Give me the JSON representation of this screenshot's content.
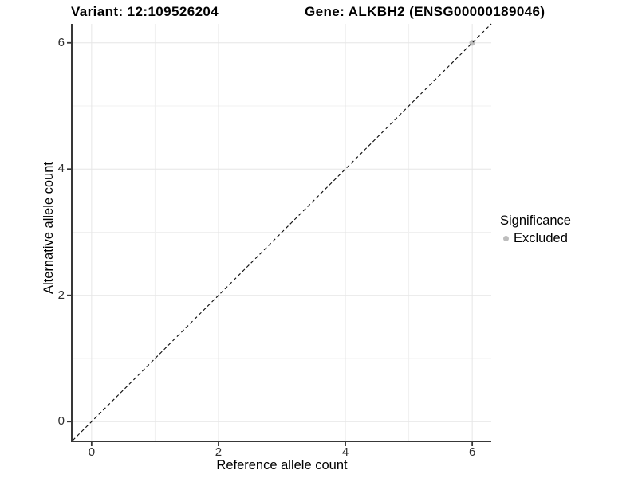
{
  "titles": {
    "variant": "Variant: 12:109526204",
    "gene": "Gene: ALKBH2 (ENSG00000189046)"
  },
  "chart_data": {
    "type": "scatter",
    "title": "Variant: 12:109526204   Gene: ALKBH2 (ENSG00000189046)",
    "xlabel": "Reference allele count",
    "ylabel": "Alternative allele count",
    "xlim": [
      -0.3,
      6.3
    ],
    "ylim": [
      -0.3,
      6.3
    ],
    "xticks": [
      0,
      2,
      4,
      6
    ],
    "yticks": [
      0,
      2,
      4,
      6
    ],
    "minor_xticks": [
      1,
      3,
      5
    ],
    "minor_yticks": [
      1,
      3,
      5
    ],
    "grid": "major and minor gridlines on white panel",
    "identity_line": {
      "slope": 1,
      "intercept": 0,
      "style": "dashed",
      "color": "#111111"
    },
    "series": [
      {
        "name": "Excluded",
        "color": "#bdbdbd",
        "points": [
          {
            "x": 6,
            "y": 6
          }
        ]
      }
    ],
    "legend": {
      "title": "Significance",
      "position": "right",
      "entries": [
        {
          "label": "Excluded",
          "color": "#bdbdbd"
        }
      ]
    }
  },
  "colors": {
    "background": "#ffffff",
    "grid_major": "#e6e6e6",
    "grid_minor": "#f0f0f0",
    "axis_line": "#383838",
    "tick_mark": "#383838",
    "tick_label": "#2e2e2e",
    "title_text": "#000000"
  }
}
